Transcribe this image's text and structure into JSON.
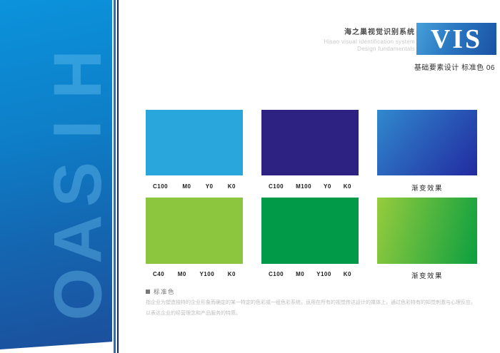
{
  "banner": {
    "letters": [
      "H",
      "I",
      "S",
      "A",
      "O"
    ],
    "gradient": [
      "168deg",
      "#0B93DB 0%",
      "#0E7EC8 38%",
      "#1563AE 70%",
      "#1C4E9B 100%"
    ],
    "edge_line_blue": "#1F74B9",
    "edge_line_navy": "#17265B"
  },
  "header": {
    "title_cn": "海之巢视觉识别系统",
    "subtitle_en1": "Hisao visual identification system",
    "subtitle_en2": "Design fundamentals",
    "logo_text": "VIS",
    "logo_gradient": [
      "112deg",
      "#46A0DA 0%",
      "#2A77C1 45%",
      "#1B52A4 100%"
    ],
    "section_label": "基础要素设计  标准色  06"
  },
  "swatches": {
    "rows": [
      {
        "items": [
          {
            "kind": "solid",
            "color": "#29A7DC",
            "values": [
              "C100",
              "M0",
              "Y0",
              "K0"
            ]
          },
          {
            "kind": "solid",
            "color": "#2D2182",
            "values": [
              "C100",
              "M100",
              "Y0",
              "K0"
            ]
          },
          {
            "kind": "gradient",
            "gradient": [
              "130deg",
              "#3089CE 0%",
              "#222AA0 100%"
            ],
            "caption": "渐变效果"
          }
        ]
      },
      {
        "items": [
          {
            "kind": "solid",
            "color": "#8CC63F",
            "values": [
              "C40",
              "M0",
              "Y100",
              "K0"
            ]
          },
          {
            "kind": "solid",
            "color": "#009A49",
            "values": [
              "C100",
              "M0",
              "Y100",
              "K0"
            ]
          },
          {
            "kind": "gradient",
            "gradient": [
              "105deg",
              "#96CC3D 0%",
              "#0C9F40 100%"
            ],
            "caption": "渐变效果"
          }
        ]
      }
    ]
  },
  "footer": {
    "heading": "标准色",
    "body_line1": "指企业为塑造独特的企业形象而确定的某一特定的色彩或一组色彩系统，运用在所有的视觉传达设计的媒体上，通过色彩特有的知觉刺激与心理反应，",
    "body_line2": "以表达企业的经营理念和产品服务的特质。"
  }
}
